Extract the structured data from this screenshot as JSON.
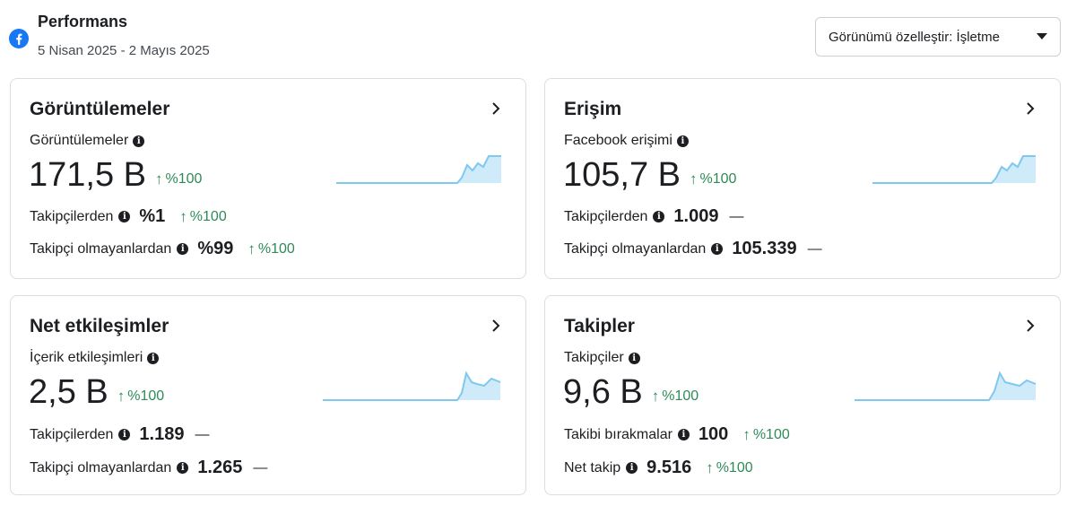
{
  "header": {
    "title": "Performans",
    "date_range": "5 Nisan 2025 - 2 Mayıs 2025",
    "customize_label": "Görünümü özelleştir: İşletme"
  },
  "colors": {
    "accent_green": "#2e8b57",
    "spark_line": "#7fc8f0",
    "spark_fill": "#cfeaf9",
    "facebook_blue": "#1877f2"
  },
  "cards": [
    {
      "title": "Görüntülemeler",
      "metric_label": "Görüntülemeler",
      "value": "171,5 B",
      "change": "%100",
      "rows": [
        {
          "label": "Takipçilerden",
          "value": "%1",
          "change": "%100",
          "trend": "up"
        },
        {
          "label": "Takipçi olmayanlardan",
          "value": "%99",
          "change": "%100",
          "trend": "up"
        }
      ]
    },
    {
      "title": "Erişim",
      "metric_label": "Facebook erişimi",
      "value": "105,7 B",
      "change": "%100",
      "rows": [
        {
          "label": "Takipçilerden",
          "value": "1.009",
          "change": "—",
          "trend": "none"
        },
        {
          "label": "Takipçi olmayanlardan",
          "value": "105.339",
          "change": "—",
          "trend": "none"
        }
      ]
    },
    {
      "title": "Net etkileşimler",
      "metric_label": "İçerik etkileşimleri",
      "value": "2,5 B",
      "change": "%100",
      "rows": [
        {
          "label": "Takipçilerden",
          "value": "1.189",
          "change": "—",
          "trend": "none"
        },
        {
          "label": "Takipçi olmayanlardan",
          "value": "1.265",
          "change": "—",
          "trend": "none"
        }
      ]
    },
    {
      "title": "Takipler",
      "metric_label": "Takipçiler",
      "value": "9,6 B",
      "change": "%100",
      "rows": [
        {
          "label": "Takibi bırakmalar",
          "value": "100",
          "change": "%100",
          "trend": "up"
        },
        {
          "label": "Net takip",
          "value": "9.516",
          "change": "%100",
          "trend": "up"
        }
      ]
    }
  ]
}
